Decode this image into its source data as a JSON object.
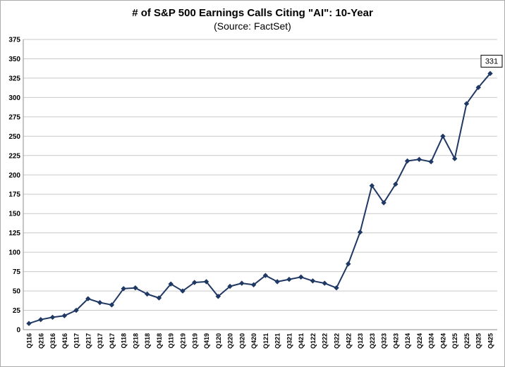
{
  "chart_data": {
    "type": "line",
    "title": "# of S&P 500 Earnings Calls Citing \"AI\": 10-Year",
    "subtitle": "(Source: FactSet)",
    "categories": [
      "Q116",
      "Q216",
      "Q316",
      "Q416",
      "Q117",
      "Q217",
      "Q317",
      "Q417",
      "Q118",
      "Q218",
      "Q318",
      "Q418",
      "Q119",
      "Q219",
      "Q319",
      "Q419",
      "Q120",
      "Q220",
      "Q320",
      "Q420",
      "Q121",
      "Q221",
      "Q321",
      "Q421",
      "Q122",
      "Q222",
      "Q322",
      "Q422",
      "Q123",
      "Q223",
      "Q323",
      "Q423",
      "Q124",
      "Q224",
      "Q324",
      "Q424",
      "Q125",
      "Q225",
      "Q325",
      "Q425"
    ],
    "values": [
      8,
      13,
      16,
      18,
      25,
      40,
      35,
      32,
      53,
      54,
      46,
      41,
      59,
      50,
      61,
      62,
      43,
      56,
      60,
      58,
      70,
      62,
      65,
      68,
      63,
      60,
      54,
      85,
      126,
      186,
      164,
      188,
      218,
      220,
      217,
      250,
      221,
      292,
      313,
      331
    ],
    "xlabel": "",
    "ylabel": "",
    "ylim": [
      0,
      375
    ],
    "ytick_step": 25,
    "grid": true,
    "legend": "none",
    "line_color": "#1F3864",
    "grid_color": "#c9c9c9",
    "axis_color": "#8c8c8c",
    "annotation": {
      "index": 39,
      "text": "331"
    }
  }
}
